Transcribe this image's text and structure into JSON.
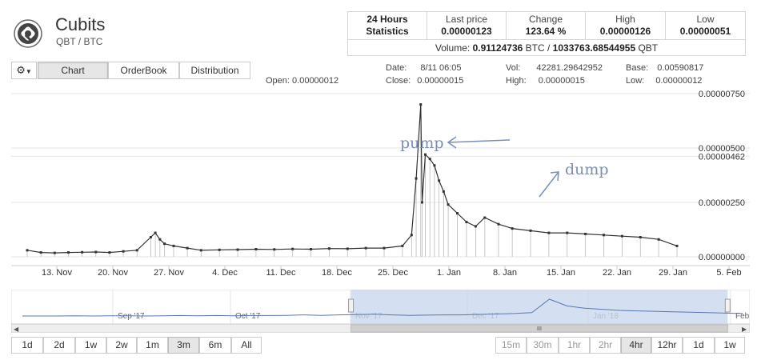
{
  "coin": {
    "name": "Cubits",
    "pair": "QBT / BTC"
  },
  "stats": {
    "header_line1": "24 Hours",
    "header_line2": "Statistics",
    "last_price_label": "Last price",
    "last_price": "0.00000123",
    "change_label": "Change",
    "change": "123.64 %",
    "high_label": "High",
    "high": "0.00000126",
    "low_label": "Low",
    "low": "0.00000051",
    "volume_label": "Volume:",
    "volume_btc": "0.91124736",
    "volume_btc_unit": "BTC /",
    "volume_qbt": "1033763.68544955",
    "volume_qbt_unit": "QBT"
  },
  "tabs": {
    "chart": "Chart",
    "orderbook": "OrderBook",
    "distribution": "Distribution",
    "active": "chart"
  },
  "ohlc": {
    "open_label": "Open:",
    "open": "0.00000012",
    "date_label": "Date:",
    "date": "8/11 06:05",
    "close_label": "Close:",
    "close": "0.00000015",
    "vol_label": "Vol:",
    "vol": "42281.29642952",
    "high_label": "High:",
    "high": "0.00000015",
    "base_label": "Base:",
    "base": "0.00590817",
    "low_label": "Low:",
    "low": "0.00000012"
  },
  "annotations": {
    "pump": "pump",
    "dump": "dump"
  },
  "navigator": {
    "labels": [
      "Sep '17",
      "Oct '17",
      "Nov '17",
      "Dec '17",
      "Jan '18",
      "Feb"
    ]
  },
  "range_buttons": [
    "1d",
    "2d",
    "1w",
    "2w",
    "1m",
    "3m",
    "6m",
    "All"
  ],
  "range_active": "3m",
  "interval_buttons": [
    "15m",
    "30m",
    "1hr",
    "2hr",
    "4hr",
    "12hr",
    "1d",
    "1w"
  ],
  "interval_active": "4hr",
  "chart_data": {
    "type": "candlestick",
    "x_tick_labels": [
      "13. Nov",
      "20. Nov",
      "27. Nov",
      "4. Dec",
      "11. Dec",
      "18. Dec",
      "25. Dec",
      "1. Jan",
      "8. Jan",
      "15. Jan",
      "22. Jan",
      "29. Jan",
      "5. Feb"
    ],
    "y_tick_labels": [
      "0.00000750",
      "0.00000500",
      "0.00000462",
      "0.00000250",
      "0.00000000"
    ],
    "y_ticks": [
      7.5e-06,
      5e-06,
      4.62e-06,
      2.5e-06,
      0
    ],
    "ylim": [
      0,
      7.5e-06
    ],
    "x": [
      0,
      3,
      6,
      9,
      12,
      15,
      18,
      21,
      24,
      27,
      28,
      29,
      30,
      32,
      35,
      38,
      42,
      46,
      50,
      54,
      58,
      62,
      66,
      70,
      74,
      78,
      82,
      84,
      85,
      86,
      86.3,
      87,
      88,
      89,
      90,
      91,
      92,
      94,
      96,
      98,
      100,
      103,
      106,
      110,
      114,
      118,
      122,
      126,
      130,
      134,
      138,
      142
    ],
    "values": [
      3e-07,
      2e-07,
      1.8e-07,
      2e-07,
      2.1e-07,
      2.2e-07,
      2e-07,
      2.5e-07,
      3e-07,
      9e-07,
      1.1e-06,
      8e-07,
      6e-07,
      5e-07,
      4e-07,
      3e-07,
      3.2e-07,
      3.3e-07,
      3.5e-07,
      3.4e-07,
      3.6e-07,
      3.5e-07,
      3.8e-07,
      3.7e-07,
      4e-07,
      4e-07,
      5e-07,
      1e-06,
      3.6e-06,
      7e-06,
      2.5e-06,
      4.7e-06,
      4.5e-06,
      4.2e-06,
      3.5e-06,
      3e-06,
      2.4e-06,
      2e-06,
      1.6e-06,
      1.4e-06,
      1.8e-06,
      1.5e-06,
      1.3e-06,
      1.2e-06,
      1.1e-06,
      1.1e-06,
      1.05e-06,
      1e-06,
      9.5e-07,
      9e-07,
      8e-07,
      5e-07
    ],
    "nav_values": [
      0.25,
      0.25,
      0.25,
      0.26,
      0.25,
      0.26,
      0.26,
      0.25,
      0.26,
      0.27,
      0.26,
      0.27,
      0.26,
      0.27,
      0.27,
      0.28,
      0.3,
      0.28,
      0.3,
      0.31,
      0.33,
      0.3,
      0.28,
      0.29,
      0.3,
      0.3,
      0.32,
      0.34,
      0.36,
      0.4,
      1.0,
      0.7,
      0.6,
      0.55,
      0.5,
      0.48,
      0.46,
      0.44,
      0.42,
      0.4,
      0.38,
      0.36
    ],
    "navigator_selection": [
      0.46,
      0.97
    ],
    "grid": true,
    "legend": "none"
  }
}
